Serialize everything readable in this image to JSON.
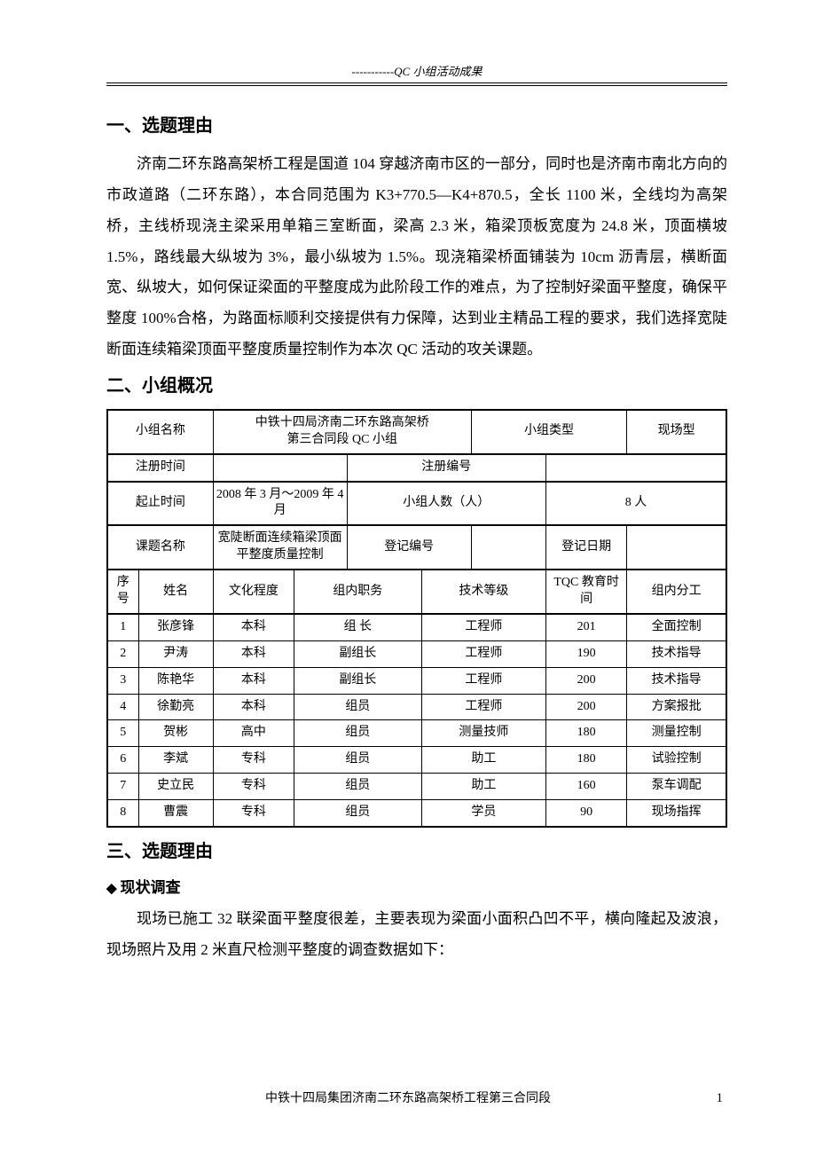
{
  "header": {
    "text": "-----------QC 小组活动成果"
  },
  "section1": {
    "title": "一、选题理由",
    "body": "济南二环东路高架桥工程是国道 104 穿越济南市区的一部分，同时也是济南市南北方向的市政道路（二环东路），本合同范围为 K3+770.5—K4+870.5，全长 1100 米，全线均为高架桥，主线桥现浇主梁采用单箱三室断面，梁高 2.3 米，箱梁顶板宽度为 24.8 米，顶面横坡 1.5%，路线最大纵坡为 3%，最小纵坡为 1.5%。现浇箱梁桥面铺装为 10cm 沥青层，横断面宽、纵坡大，如何保证梁面的平整度成为此阶段工作的难点，为了控制好梁面平整度，确保平整度 100%合格，为路面标顺利交接提供有力保障，达到业主精品工程的要求，我们选择宽陡断面连续箱梁顶面平整度质量控制作为本次 QC 活动的攻关课题。"
  },
  "section2": {
    "title": "二、小组概况",
    "info": {
      "r1c1": "小组名称",
      "r1c2": "中铁十四局济南二环东路高架桥\n第三合同段 QC 小组",
      "r1c3": "小组类型",
      "r1c4": "现场型",
      "r2c1": "注册时间",
      "r2c2": "",
      "r2c3": "注册编号",
      "r2c4": "",
      "r3c1": "起止时间",
      "r3c2": "2008 年 3 月～2009 年 4 月",
      "r3c3": "小组人数（人）",
      "r3c4": "8 人",
      "r4c1": "课题名称",
      "r4c2": "宽陡断面连续箱梁顶面平整度质量控制",
      "r4c3": "登记编号",
      "r4c4": "",
      "r4c5": "登记日期",
      "r4c6": ""
    },
    "headers": {
      "h1": "序号",
      "h2": "姓名",
      "h3": "文化程度",
      "h4": "组内职务",
      "h5": "技术等级",
      "h6": "TQC 教育时间",
      "h7": "组内分工"
    },
    "members": [
      {
        "no": "1",
        "name": "张彦锋",
        "edu": "本科",
        "role": "组  长",
        "grade": "工程师",
        "tqc": "201",
        "duty": "全面控制"
      },
      {
        "no": "2",
        "name": "尹涛",
        "edu": "本科",
        "role": "副组长",
        "grade": "工程师",
        "tqc": "190",
        "duty": "技术指导"
      },
      {
        "no": "3",
        "name": "陈艳华",
        "edu": "本科",
        "role": "副组长",
        "grade": "工程师",
        "tqc": "200",
        "duty": "技术指导"
      },
      {
        "no": "4",
        "name": "徐勤亮",
        "edu": "本科",
        "role": "组员",
        "grade": "工程师",
        "tqc": "200",
        "duty": "方案报批"
      },
      {
        "no": "5",
        "name": "贺彬",
        "edu": "高中",
        "role": "组员",
        "grade": "测量技师",
        "tqc": "180",
        "duty": "测量控制"
      },
      {
        "no": "6",
        "name": "李斌",
        "edu": "专科",
        "role": "组员",
        "grade": "助工",
        "tqc": "180",
        "duty": "试验控制"
      },
      {
        "no": "7",
        "name": "史立民",
        "edu": "专科",
        "role": "组员",
        "grade": "助工",
        "tqc": "160",
        "duty": "泵车调配"
      },
      {
        "no": "8",
        "name": "曹震",
        "edu": "专科",
        "role": "组员",
        "grade": "学员",
        "tqc": "90",
        "duty": "现场指挥"
      }
    ]
  },
  "section3": {
    "title": "三、选题理由",
    "sub": "现状调查",
    "body": "现场已施工 32 联梁面平整度很差，主要表现为梁面小面积凸凹不平，横向隆起及波浪，现场照片及用 2 米直尺检测平整度的调查数据如下："
  },
  "footer": {
    "text": "中铁十四局集团济南二环东路高架桥工程第三合同段",
    "page": "1"
  }
}
